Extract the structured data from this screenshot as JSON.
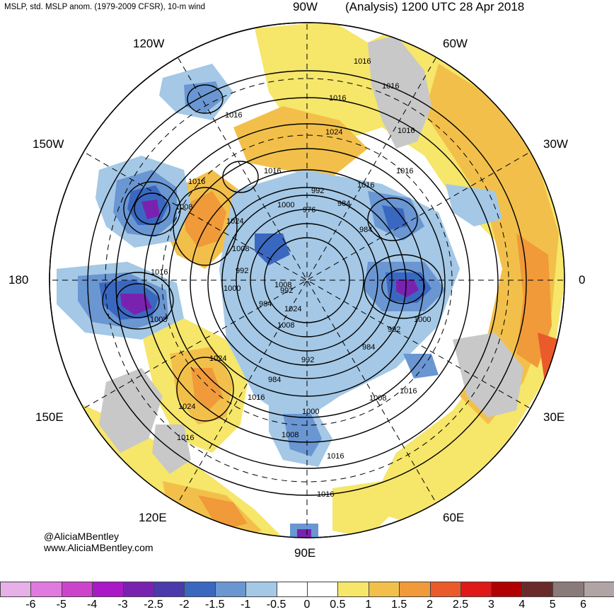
{
  "header": {
    "left": "MSLP, std. MSLP anom. (1979-2009 CFSR), 10-m wind",
    "right": "(Analysis) 1200 UTC 28 Apr 2018"
  },
  "longitudes": {
    "top": "90W",
    "bottom": "90E",
    "left": "180",
    "right": "0",
    "upper_left_1": "120W",
    "upper_left_2": "150W",
    "upper_right_1": "60W",
    "upper_right_2": "30W",
    "lower_left_1": "150E",
    "lower_left_2": "120E",
    "lower_right_1": "30E",
    "lower_right_2": "60E"
  },
  "credits": {
    "handle": "@AliciaMBentley",
    "url": "www.AliciaMBentley.com"
  },
  "isobar_labels": [
    "1016",
    "1016",
    "1016",
    "1016",
    "1024",
    "1016",
    "1016",
    "1016",
    "1016",
    "1016",
    "992",
    "1008",
    "1008",
    "1024",
    "1000",
    "984",
    "976",
    "984",
    "1008",
    "992",
    "1016",
    "1000",
    "992",
    "1008",
    "984",
    "1024",
    "1008",
    "1000",
    "992",
    "984",
    "1024",
    "1016",
    "992",
    "984",
    "1024",
    "1016",
    "1000",
    "1008",
    "1016",
    "1016",
    "1008",
    "1016"
  ],
  "colorbar": {
    "colors": [
      "#e8b0e8",
      "#e07ae0",
      "#cc44cc",
      "#aa18c8",
      "#7a22b0",
      "#4a3aac",
      "#3a68c0",
      "#6a96d2",
      "#a4c8e6",
      "#ffffff",
      "#ffffff",
      "#f6e66a",
      "#f2c04a",
      "#f09a3a",
      "#ea5a2a",
      "#e01818",
      "#b00000",
      "#6a2a2a",
      "#8a7a7a",
      "#b0a4a4"
    ],
    "ticks": [
      "-6",
      "-5",
      "-4",
      "-3",
      "-2.5",
      "-2",
      "-1.5",
      "-1",
      "-0.5",
      "0",
      "0.5",
      "1",
      "1.5",
      "2",
      "2.5",
      "3",
      "4",
      "5",
      "6"
    ]
  }
}
